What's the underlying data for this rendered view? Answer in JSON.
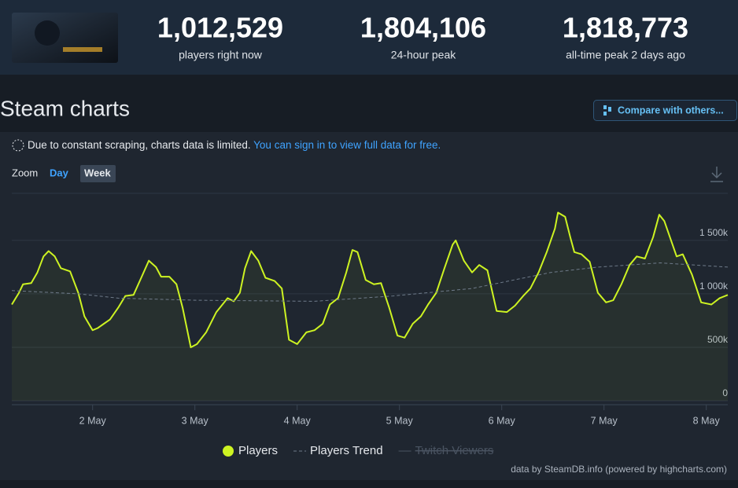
{
  "header": {
    "stats": [
      {
        "value": "1,012,529",
        "label": "players right now"
      },
      {
        "value": "1,804,106",
        "label": "24-hour peak"
      },
      {
        "value": "1,818,773",
        "label": "all-time peak 2 days ago"
      }
    ]
  },
  "page_title": "Steam charts",
  "compare_button": "Compare with others...",
  "notice": {
    "text": "Due to constant scraping, charts data is limited.",
    "link": "You can sign in to view full data for free."
  },
  "zoom": {
    "label": "Zoom",
    "options": [
      "Day",
      "Week"
    ]
  },
  "chart_data": {
    "type": "line",
    "xlim": [
      1.21,
      8.21
    ],
    "xticks": [
      {
        "value": 2,
        "label": "2 May"
      },
      {
        "value": 3,
        "label": "3 May"
      },
      {
        "value": 4,
        "label": "4 May"
      },
      {
        "value": 5,
        "label": "5 May"
      },
      {
        "value": 6,
        "label": "6 May"
      },
      {
        "value": 7,
        "label": "7 May"
      },
      {
        "value": 8,
        "label": "8 May"
      }
    ],
    "ylim": [
      0,
      1940000
    ],
    "yticks": [
      0,
      {
        "value": 500000,
        "label": "500k"
      },
      {
        "value": 1000000,
        "label": "1 000k"
      },
      {
        "value": 1500000,
        "label": "1 500k"
      }
    ],
    "grid": true,
    "series": [
      {
        "name": "Players",
        "color": "#cdf322",
        "area": true,
        "x": [
          1.21,
          1.28,
          1.32,
          1.4,
          1.46,
          1.52,
          1.57,
          1.63,
          1.69,
          1.78,
          1.86,
          1.92,
          2.0,
          2.05,
          2.11,
          2.17,
          2.25,
          2.32,
          2.4,
          2.48,
          2.55,
          2.62,
          2.67,
          2.75,
          2.82,
          2.88,
          2.96,
          3.02,
          3.11,
          3.21,
          3.32,
          3.38,
          3.44,
          3.49,
          3.55,
          3.62,
          3.69,
          3.78,
          3.85,
          3.92,
          4.0,
          4.09,
          4.17,
          4.25,
          4.32,
          4.4,
          4.48,
          4.54,
          4.59,
          4.67,
          4.75,
          4.82,
          4.9,
          4.98,
          5.05,
          5.13,
          5.21,
          5.28,
          5.36,
          5.44,
          5.52,
          5.55,
          5.63,
          5.71,
          5.78,
          5.86,
          5.95,
          6.05,
          6.13,
          6.21,
          6.28,
          6.36,
          6.44,
          6.52,
          6.55,
          6.62,
          6.67,
          6.71,
          6.78,
          6.86,
          6.94,
          7.02,
          7.09,
          7.17,
          7.25,
          7.32,
          7.4,
          7.48,
          7.54,
          7.59,
          7.67,
          7.71,
          7.77,
          7.86,
          7.95,
          8.05,
          8.13,
          8.21
        ],
        "values": [
          900000,
          1010000,
          1090000,
          1100000,
          1200000,
          1350000,
          1400000,
          1350000,
          1240000,
          1210000,
          1010000,
          790000,
          660000,
          680000,
          720000,
          760000,
          870000,
          980000,
          990000,
          1160000,
          1310000,
          1250000,
          1160000,
          1160000,
          1090000,
          870000,
          500000,
          530000,
          640000,
          830000,
          960000,
          930000,
          1010000,
          1240000,
          1400000,
          1310000,
          1150000,
          1120000,
          1050000,
          570000,
          530000,
          640000,
          660000,
          720000,
          900000,
          960000,
          1200000,
          1410000,
          1390000,
          1130000,
          1090000,
          1100000,
          870000,
          610000,
          590000,
          720000,
          790000,
          900000,
          1010000,
          1240000,
          1460000,
          1500000,
          1310000,
          1200000,
          1270000,
          1220000,
          840000,
          830000,
          890000,
          980000,
          1050000,
          1200000,
          1390000,
          1610000,
          1760000,
          1720000,
          1530000,
          1390000,
          1370000,
          1300000,
          1010000,
          920000,
          940000,
          1090000,
          1270000,
          1350000,
          1330000,
          1530000,
          1740000,
          1680000,
          1460000,
          1350000,
          1370000,
          1180000,
          920000,
          900000,
          960000,
          990000
        ]
      },
      {
        "name": "Players Trend",
        "color": "#6f7b8a",
        "dashed": true,
        "x": [
          1.21,
          1.86,
          2.25,
          3.02,
          4.17,
          4.94,
          5.71,
          6.48,
          6.94,
          7.55,
          8.21
        ],
        "values": [
          1030000,
          1000000,
          960000,
          940000,
          930000,
          980000,
          1050000,
          1200000,
          1250000,
          1290000,
          1250000
        ]
      }
    ],
    "hidden_legend": [
      "Twitch Viewers"
    ]
  },
  "credits": "data by SteamDB.info (powered by highcharts.com)"
}
